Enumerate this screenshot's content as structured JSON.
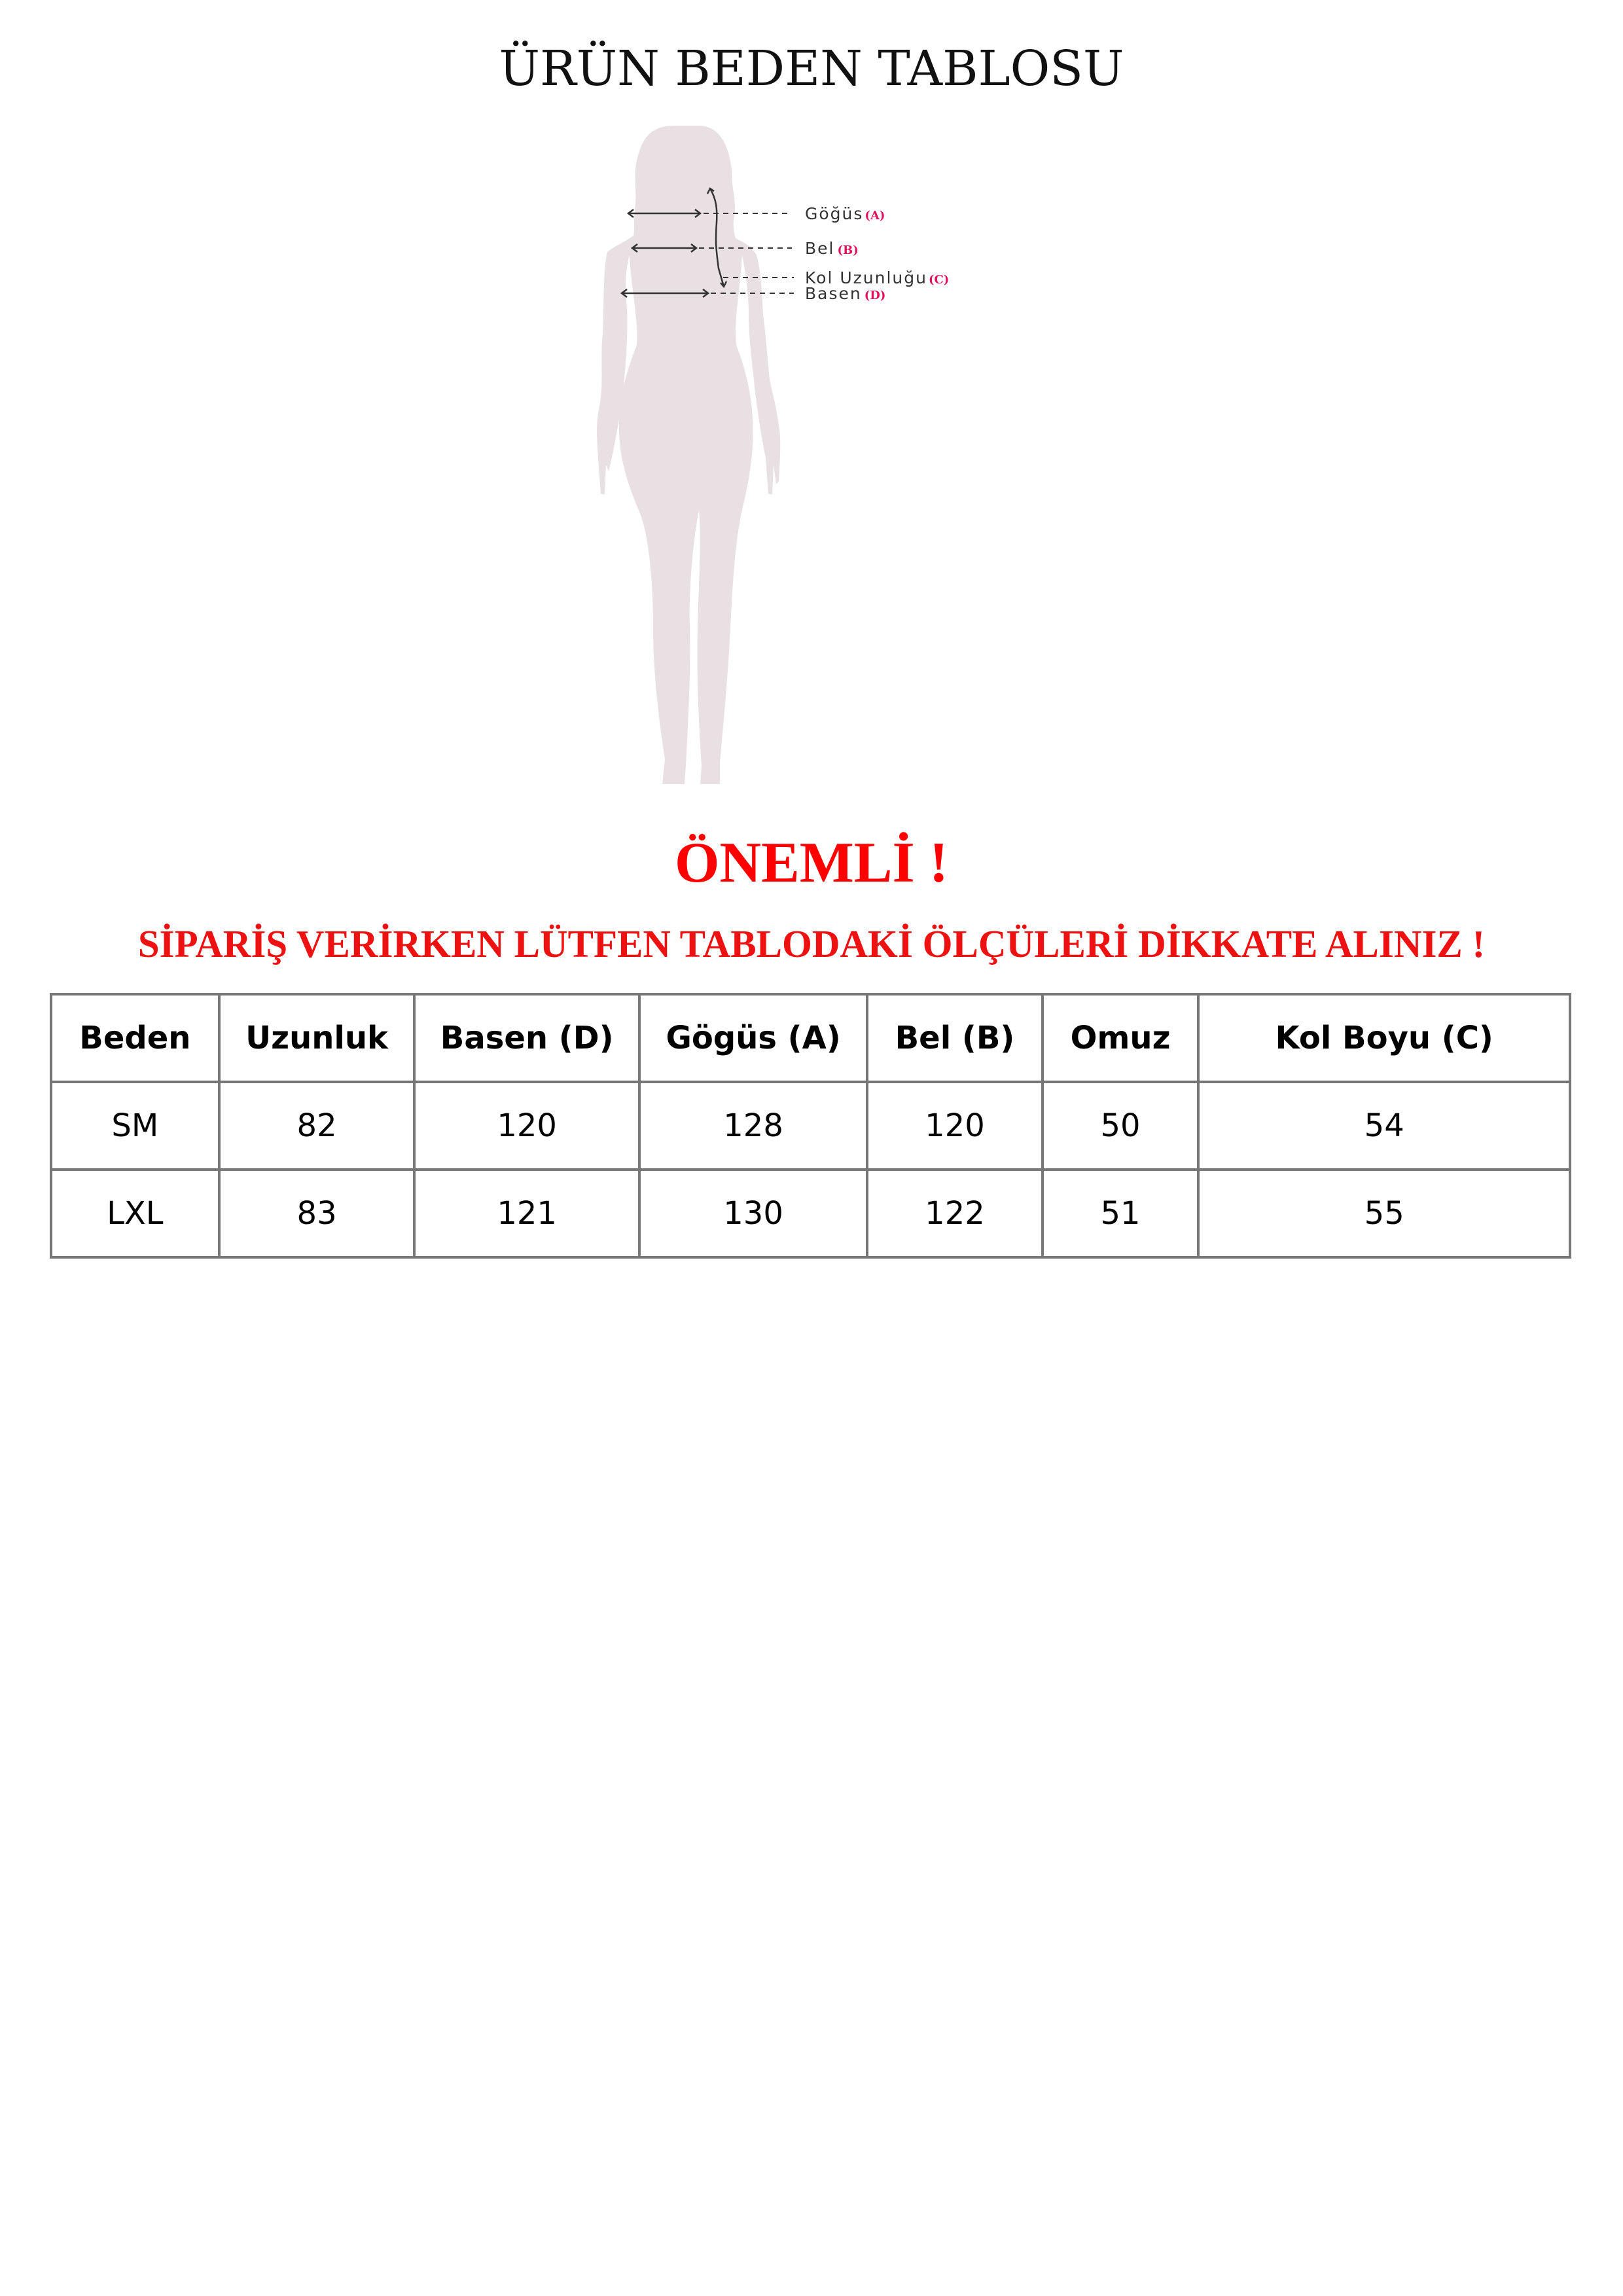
{
  "title": "ÜRÜN BEDEN TABLOSU",
  "figure": {
    "silhouette_color": "#e8e0e2",
    "labels": [
      {
        "text": "Göğüs",
        "code": "(A)"
      },
      {
        "text": "Bel",
        "code": "(B)"
      },
      {
        "text": "Kol Uzunluğu",
        "code": "(C)"
      },
      {
        "text": "Basen",
        "code": "(D)"
      }
    ]
  },
  "important": "ÖNEMLİ !",
  "notice": "SİPARİŞ VERİRKEN LÜTFEN TABLODAKİ ÖLÇÜLERİ DİKKATE ALINIZ !",
  "colors": {
    "accent_red": "#ff0000",
    "code_pink": "#e0115f"
  },
  "table": {
    "headers": [
      "Beden",
      "Uzunluk",
      "Basen (D)",
      "Gögüs (A)",
      "Bel (B)",
      "Omuz",
      "Kol Boyu (C)"
    ],
    "rows": [
      [
        "SM",
        "82",
        "120",
        "128",
        "120",
        "50",
        "54"
      ],
      [
        "LXL",
        "83",
        "121",
        "130",
        "122",
        "51",
        "55"
      ]
    ]
  }
}
